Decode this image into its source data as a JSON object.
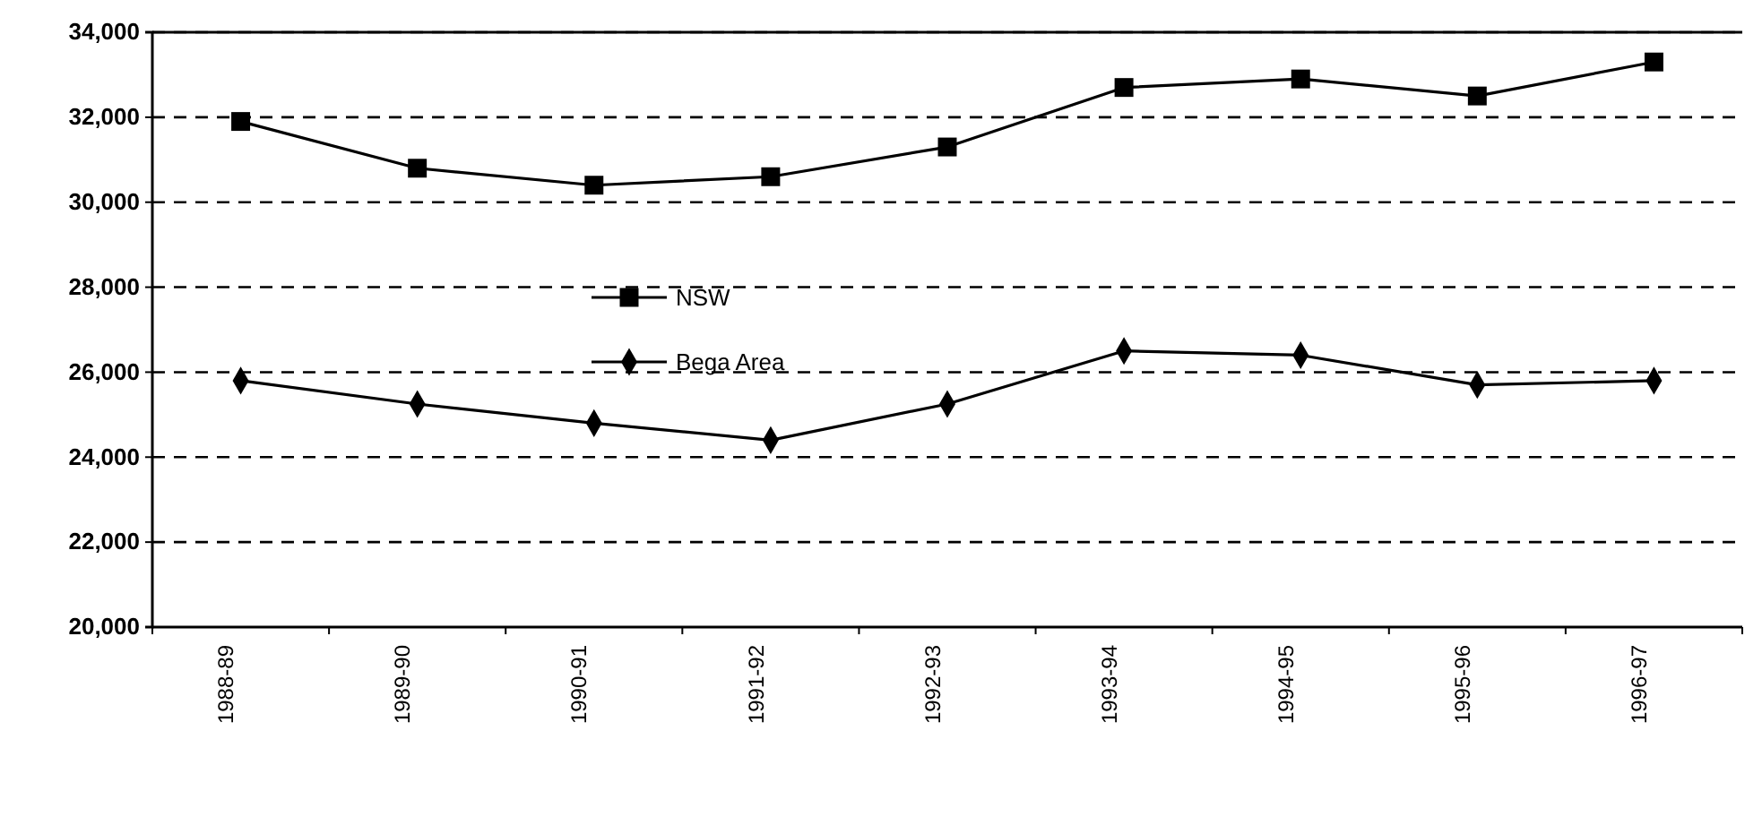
{
  "chart_data": {
    "type": "line",
    "categories": [
      "1988-89",
      "1989-90",
      "1990-91",
      "1991-92",
      "1992-93",
      "1993-94",
      "1994-95",
      "1995-96",
      "1996-97"
    ],
    "series": [
      {
        "name": "NSW",
        "color": "#000000",
        "marker": "square",
        "values": [
          31900,
          30800,
          30400,
          30600,
          31300,
          32700,
          32900,
          32500,
          33300
        ]
      },
      {
        "name": "Bega Area",
        "color": "#000000",
        "marker": "diamond",
        "values": [
          25800,
          25250,
          24800,
          24400,
          25250,
          26500,
          26400,
          25700,
          25800
        ]
      }
    ],
    "ylim": [
      20000,
      34000
    ],
    "yticks": [
      {
        "value": 20000,
        "label": "20,000"
      },
      {
        "value": 22000,
        "label": "22,000"
      },
      {
        "value": 24000,
        "label": "24,000"
      },
      {
        "value": 26000,
        "label": "26,000"
      },
      {
        "value": 28000,
        "label": "28,000"
      },
      {
        "value": 30000,
        "label": "30,000"
      },
      {
        "value": 32000,
        "label": "32,000"
      },
      {
        "value": 34000,
        "label": "34,000"
      }
    ],
    "grid": "y",
    "legend": "center",
    "line_style": "solid"
  }
}
